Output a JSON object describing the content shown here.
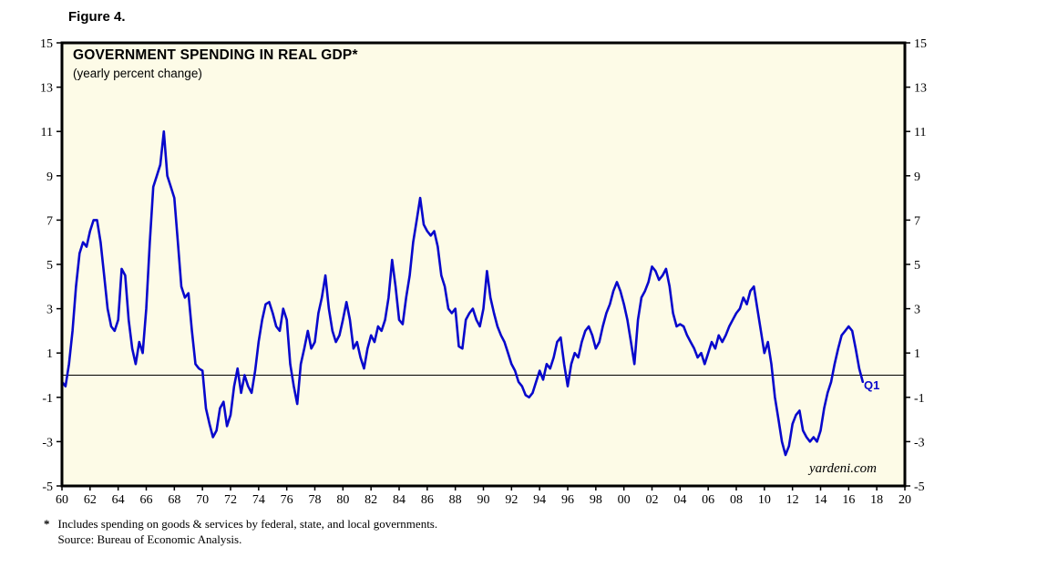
{
  "figure_label": "Figure 4.",
  "chart": {
    "title": "GOVERNMENT SPENDING IN REAL GDP*",
    "subtitle": "(yearly percent change)",
    "q1_label": "Q1",
    "watermark": "yardeni.com"
  },
  "footnote": {
    "marker": "*",
    "line1": "Includes spending on goods & services by federal, state, and local governments.",
    "line2": "Source: Bureau of Economic Analysis."
  },
  "colors": {
    "line": "#0808CC",
    "annotation": "#0808CC",
    "plot_background": "#FDFBE7",
    "border": "#000000"
  },
  "chart_data": {
    "type": "line",
    "title": "GOVERNMENT SPENDING IN REAL GDP*",
    "subtitle": "(yearly percent change)",
    "series_name": "Government spending in real GDP, yearly percent change (quarterly observations)",
    "xlabel": "",
    "ylabel": "",
    "grid": false,
    "legend": "none",
    "x_start": 1960,
    "x_step": 0.25,
    "xlim": [
      1960,
      2020
    ],
    "ylim": [
      -5,
      15
    ],
    "y_ticks": [
      15,
      13,
      11,
      9,
      7,
      5,
      3,
      1,
      -1,
      -3,
      -5
    ],
    "x_tick_years": [
      1960,
      1962,
      1964,
      1966,
      1968,
      1970,
      1972,
      1974,
      1976,
      1978,
      1980,
      1982,
      1984,
      1986,
      1988,
      1990,
      1992,
      1994,
      1996,
      1998,
      2000,
      2002,
      2004,
      2006,
      2008,
      2010,
      2012,
      2014,
      2016,
      2018,
      2020
    ],
    "x_tick_labels": [
      "60",
      "62",
      "64",
      "66",
      "68",
      "70",
      "72",
      "74",
      "76",
      "78",
      "80",
      "82",
      "84",
      "86",
      "88",
      "90",
      "92",
      "94",
      "96",
      "98",
      "00",
      "02",
      "04",
      "06",
      "08",
      "10",
      "12",
      "14",
      "16",
      "18",
      "20"
    ],
    "zero_line": 0,
    "values": [
      -0.3,
      -0.5,
      0.5,
      2.0,
      4.0,
      5.5,
      6.0,
      5.8,
      6.5,
      7.0,
      7.0,
      6.0,
      4.5,
      3.0,
      2.2,
      2.0,
      2.5,
      4.8,
      4.5,
      2.5,
      1.2,
      0.5,
      1.5,
      1.0,
      3.0,
      6.0,
      8.5,
      9.0,
      9.5,
      11.0,
      9.0,
      8.5,
      8.0,
      6.0,
      4.0,
      3.5,
      3.7,
      2.0,
      0.5,
      0.3,
      0.2,
      -1.5,
      -2.2,
      -2.8,
      -2.5,
      -1.5,
      -1.2,
      -2.3,
      -1.8,
      -0.5,
      0.3,
      -0.8,
      0.0,
      -0.5,
      -0.8,
      0.2,
      1.5,
      2.5,
      3.2,
      3.3,
      2.8,
      2.2,
      2.0,
      3.0,
      2.5,
      0.5,
      -0.5,
      -1.3,
      0.5,
      1.2,
      2.0,
      1.2,
      1.5,
      2.8,
      3.5,
      4.5,
      3.0,
      2.0,
      1.5,
      1.8,
      2.5,
      3.3,
      2.5,
      1.2,
      1.5,
      0.8,
      0.3,
      1.2,
      1.8,
      1.5,
      2.2,
      2.0,
      2.5,
      3.5,
      5.2,
      4.0,
      2.5,
      2.3,
      3.5,
      4.5,
      6.0,
      7.0,
      8.0,
      6.8,
      6.5,
      6.3,
      6.5,
      5.8,
      4.5,
      4.0,
      3.0,
      2.8,
      3.0,
      1.3,
      1.2,
      2.5,
      2.8,
      3.0,
      2.5,
      2.2,
      3.0,
      4.7,
      3.5,
      2.8,
      2.2,
      1.8,
      1.5,
      1.0,
      0.5,
      0.2,
      -0.3,
      -0.5,
      -0.9,
      -1.0,
      -0.8,
      -0.3,
      0.2,
      -0.2,
      0.5,
      0.3,
      0.8,
      1.5,
      1.7,
      0.5,
      -0.5,
      0.5,
      1.0,
      0.8,
      1.5,
      2.0,
      2.2,
      1.8,
      1.2,
      1.5,
      2.2,
      2.8,
      3.2,
      3.8,
      4.2,
      3.8,
      3.2,
      2.5,
      1.5,
      0.5,
      2.5,
      3.5,
      3.8,
      4.2,
      4.9,
      4.7,
      4.3,
      4.5,
      4.8,
      4.0,
      2.8,
      2.2,
      2.3,
      2.2,
      1.8,
      1.5,
      1.2,
      0.8,
      1.0,
      0.5,
      1.0,
      1.5,
      1.2,
      1.8,
      1.5,
      1.8,
      2.2,
      2.5,
      2.8,
      3.0,
      3.5,
      3.2,
      3.8,
      4.0,
      3.0,
      2.0,
      1.0,
      1.5,
      0.5,
      -1.0,
      -2.0,
      -3.0,
      -3.6,
      -3.2,
      -2.2,
      -1.8,
      -1.6,
      -2.5,
      -2.8,
      -3.0,
      -2.8,
      -3.0,
      -2.5,
      -1.5,
      -0.8,
      -0.3,
      0.5,
      1.2,
      1.8,
      2.0,
      2.2,
      2.0,
      1.2,
      0.3,
      -0.3
    ]
  }
}
